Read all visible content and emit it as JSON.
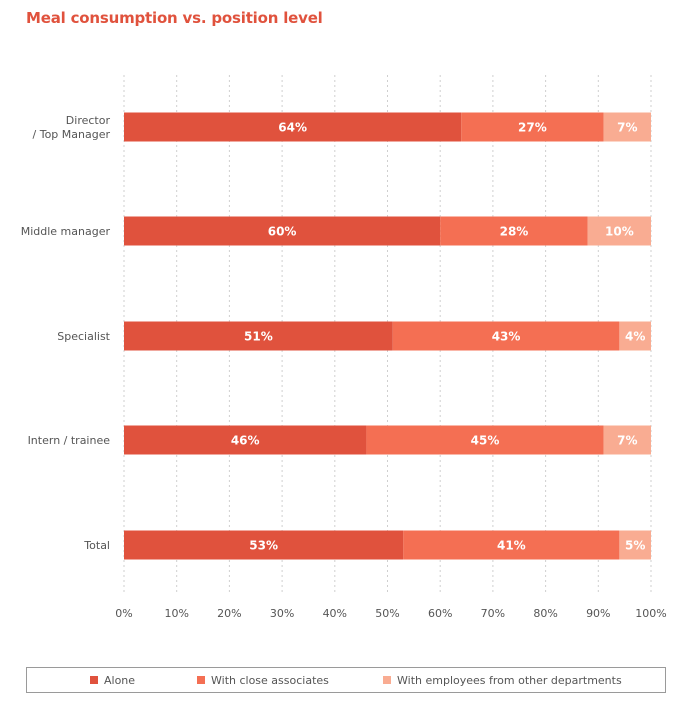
{
  "chart_data": {
    "type": "bar",
    "orientation": "horizontal",
    "stacked": true,
    "title": "Meal consumption vs. position level",
    "categories": [
      "Director\n/ Top Manager",
      "Middle manager",
      "Specialist",
      "Intern / trainee",
      "Total"
    ],
    "series": [
      {
        "name": "Alone",
        "values": [
          64,
          60,
          51,
          46,
          53
        ],
        "color": "#e0523d"
      },
      {
        "name": "With close associates",
        "values": [
          27,
          28,
          43,
          45,
          41
        ],
        "color": "#f46f53"
      },
      {
        "name": "With employees from other departments",
        "values": [
          7,
          10,
          4,
          7,
          5
        ],
        "color": "#f9ac92"
      }
    ],
    "data_labels": [
      [
        "64%",
        "27%",
        "7%"
      ],
      [
        "60%",
        "28%",
        "10%"
      ],
      [
        "51%",
        "43%",
        "4%"
      ],
      [
        "46%",
        "45%",
        "7%"
      ],
      [
        "53%",
        "41%",
        "5%"
      ]
    ],
    "xlim": [
      0,
      100
    ],
    "x_ticks": [
      "0%",
      "10%",
      "20%",
      "30%",
      "40%",
      "50%",
      "60%",
      "70%",
      "80%",
      "90%",
      "100%"
    ],
    "grid": "vertical dashed",
    "legend_position": "bottom"
  }
}
